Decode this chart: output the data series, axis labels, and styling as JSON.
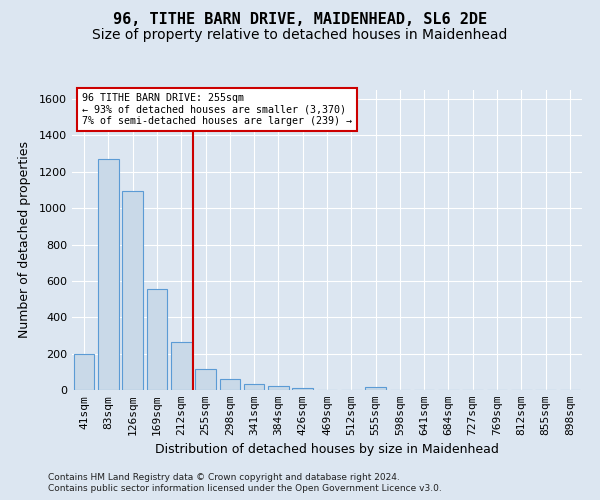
{
  "title": "96, TITHE BARN DRIVE, MAIDENHEAD, SL6 2DE",
  "subtitle": "Size of property relative to detached houses in Maidenhead",
  "xlabel": "Distribution of detached houses by size in Maidenhead",
  "ylabel": "Number of detached properties",
  "categories": [
    "41sqm",
    "83sqm",
    "126sqm",
    "169sqm",
    "212sqm",
    "255sqm",
    "298sqm",
    "341sqm",
    "384sqm",
    "426sqm",
    "469sqm",
    "512sqm",
    "555sqm",
    "598sqm",
    "641sqm",
    "684sqm",
    "727sqm",
    "769sqm",
    "812sqm",
    "855sqm",
    "898sqm"
  ],
  "values": [
    197,
    1270,
    1097,
    555,
    265,
    115,
    58,
    35,
    22,
    10,
    0,
    0,
    15,
    0,
    0,
    0,
    0,
    0,
    0,
    0,
    0
  ],
  "bar_color": "#c9d9e8",
  "bar_edge_color": "#5b9bd5",
  "vline_x": 4.5,
  "vline_color": "#cc0000",
  "annotation_text": "96 TITHE BARN DRIVE: 255sqm\n← 93% of detached houses are smaller (3,370)\n7% of semi-detached houses are larger (239) →",
  "annotation_box_edgecolor": "#cc0000",
  "ylim": [
    0,
    1650
  ],
  "yticks": [
    0,
    200,
    400,
    600,
    800,
    1000,
    1200,
    1400,
    1600
  ],
  "footnote1": "Contains HM Land Registry data © Crown copyright and database right 2024.",
  "footnote2": "Contains public sector information licensed under the Open Government Licence v3.0.",
  "bg_color": "#dce6f1",
  "grid_color": "#ffffff",
  "title_fontsize": 11,
  "subtitle_fontsize": 10,
  "axis_label_fontsize": 9,
  "tick_fontsize": 8
}
